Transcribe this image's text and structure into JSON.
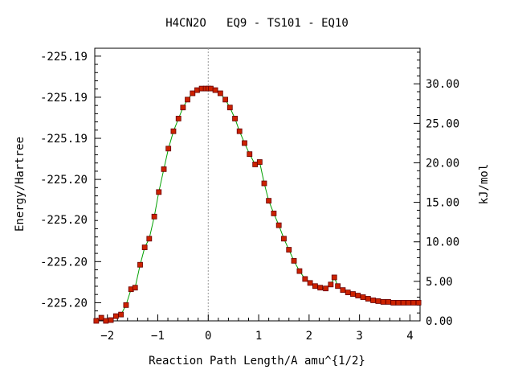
{
  "chart_data": {
    "type": "line",
    "title": "H4CN2O   EQ9 - TS101 - EQ10",
    "xlabel": "Reaction Path Length/A amu^{1/2}",
    "ylabel_left": "Energy/Hartree",
    "ylabel_right": "kJ/mol",
    "xlim": [
      -2.25,
      4.2
    ],
    "ylim_right": [
      0,
      34.5
    ],
    "x_ticks": [
      -2,
      -1,
      0,
      1,
      2,
      3,
      4
    ],
    "x_tick_labels": [
      "−2",
      "−1",
      "0",
      "1",
      "2",
      "3",
      "4"
    ],
    "left_tick_labels": [
      "-225.19",
      "-225.19",
      "-225.19",
      "-225.20",
      "-225.20",
      "-225.20",
      "-225.20"
    ],
    "left_tick_kj": [
      33.5,
      28.3,
      23.1,
      17.9,
      12.8,
      7.5,
      2.3
    ],
    "right_ticks": [
      0,
      5,
      10,
      15,
      20,
      25,
      30
    ],
    "right_tick_labels": [
      "0.00",
      "5.00",
      "10.00",
      "15.00",
      "20.00",
      "25.00",
      "30.00"
    ],
    "ts_x": 0,
    "colors": {
      "line": "#00a000",
      "marker": "#cc2200",
      "marker_edge": "#660000",
      "vline": "#999999"
    },
    "series": [
      {
        "x": [
          -2.22,
          -2.12,
          -2.03,
          -1.93,
          -1.83,
          -1.73,
          -1.63,
          -1.53,
          -1.45,
          -1.35,
          -1.26,
          -1.17,
          -1.07,
          -0.98,
          -0.88,
          -0.79,
          -0.69,
          -0.59,
          -0.5,
          -0.41,
          -0.31,
          -0.22,
          -0.13,
          -0.05,
          0.0,
          0.05,
          0.14,
          0.24,
          0.34,
          0.43,
          0.53,
          0.62,
          0.72,
          0.82,
          0.93,
          1.02,
          1.11,
          1.2,
          1.3,
          1.4,
          1.5,
          1.6,
          1.7,
          1.81,
          1.92,
          2.02,
          2.12,
          2.22,
          2.33,
          2.43,
          2.5,
          2.57,
          2.67,
          2.77,
          2.87,
          2.97,
          3.07,
          3.17,
          3.27,
          3.37,
          3.47,
          3.57,
          3.67,
          3.77,
          3.87,
          3.97,
          4.07,
          4.17
        ],
        "y": [
          0.0,
          0.4,
          0.0,
          0.1,
          0.6,
          0.8,
          2.0,
          4.0,
          4.2,
          7.1,
          9.3,
          10.4,
          13.2,
          16.3,
          19.2,
          21.8,
          24.0,
          25.6,
          27.0,
          28.0,
          28.8,
          29.2,
          29.4,
          29.4,
          29.4,
          29.4,
          29.2,
          28.8,
          28.0,
          27.0,
          25.6,
          24.0,
          22.5,
          21.1,
          19.8,
          20.1,
          17.4,
          15.2,
          13.6,
          12.1,
          10.4,
          9.0,
          7.6,
          6.3,
          5.3,
          4.8,
          4.4,
          4.2,
          4.1,
          4.6,
          5.5,
          4.4,
          3.9,
          3.6,
          3.4,
          3.2,
          3.0,
          2.8,
          2.6,
          2.5,
          2.4,
          2.4,
          2.3,
          2.3,
          2.3,
          2.3,
          2.3,
          2.3
        ]
      }
    ]
  }
}
